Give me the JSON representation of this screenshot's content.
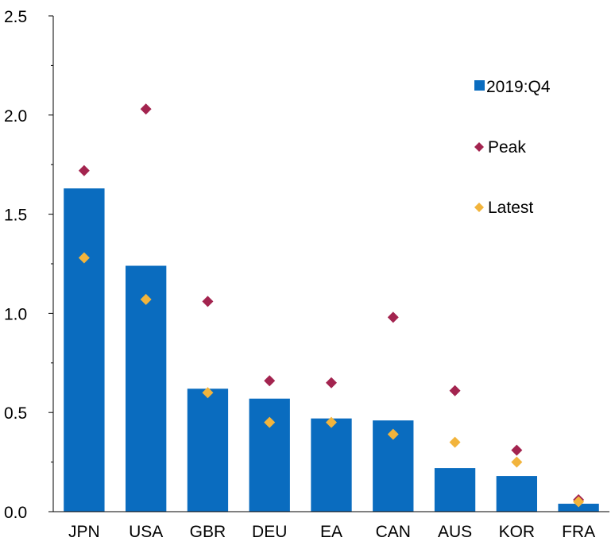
{
  "chart_data": {
    "type": "bar",
    "categories": [
      "JPN",
      "USA",
      "GBR",
      "DEU",
      "EA",
      "CAN",
      "AUS",
      "KOR",
      "FRA"
    ],
    "series": [
      {
        "name": "2019:Q4",
        "kind": "bar",
        "color": "#0a6cbf",
        "values": [
          1.63,
          1.24,
          0.62,
          0.57,
          0.47,
          0.46,
          0.22,
          0.18,
          0.04
        ]
      },
      {
        "name": "Peak",
        "kind": "marker",
        "color": "#a3244f",
        "values": [
          1.72,
          2.03,
          1.06,
          0.66,
          0.65,
          0.98,
          0.61,
          0.31,
          0.06
        ]
      },
      {
        "name": "Latest",
        "kind": "marker",
        "color": "#f2b43c",
        "values": [
          1.28,
          1.07,
          0.6,
          0.45,
          0.45,
          0.39,
          0.35,
          0.25,
          0.05
        ]
      }
    ],
    "ylim": [
      0,
      2.5
    ],
    "yticks": [
      "0.0",
      "0.5",
      "1.0",
      "1.5",
      "2.0",
      "2.5"
    ],
    "grid": false,
    "legend_position": "top-right"
  }
}
